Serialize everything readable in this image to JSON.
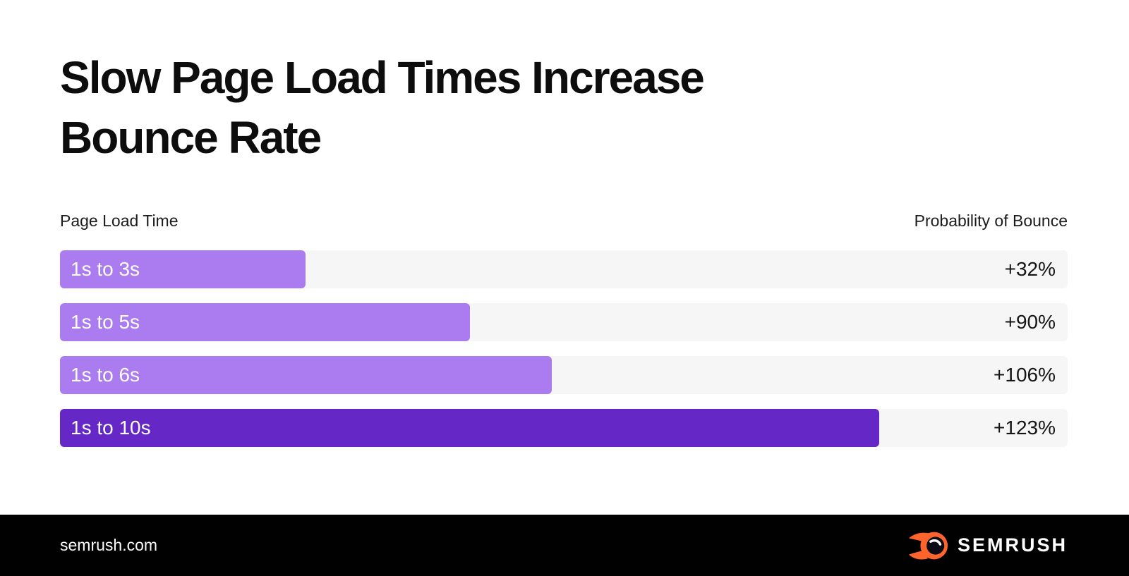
{
  "title": {
    "line1": "Slow Page Load Times Increase",
    "line2": "Bounce Rate"
  },
  "columns": {
    "left": "Page Load Time",
    "right": "Probability of Bounce"
  },
  "chart_data": {
    "type": "bar",
    "orientation": "horizontal",
    "title": "Slow Page Load Times Increase Bounce Rate",
    "xlabel": "Page Load Time",
    "ylabel": "Probability of Bounce",
    "categories": [
      "1s to 3s",
      "1s to 5s",
      "1s to 6s",
      "1s to 10s"
    ],
    "values": [
      32,
      90,
      106,
      123
    ],
    "value_labels": [
      "+32%",
      "+90%",
      "+106%",
      "+123%"
    ],
    "bar_length_seconds": [
      3,
      5,
      6,
      10
    ],
    "bar_fill_pct": [
      24.4,
      40.7,
      48.8,
      81.3
    ],
    "legend": false,
    "grid": false
  },
  "colors": {
    "bar_light": "#ab7cf0",
    "bar_dark": "#6527c6",
    "track": "#f6f6f7",
    "footer_bg": "#010101",
    "logo_orange": "#ff642d",
    "logo_ball_dark": "#0d0b16",
    "title_text": "#0d0d0d"
  },
  "footer": {
    "site": "semrush.com",
    "brand": "SEMRUSH",
    "logo_icon": "semrush-flame-icon"
  }
}
